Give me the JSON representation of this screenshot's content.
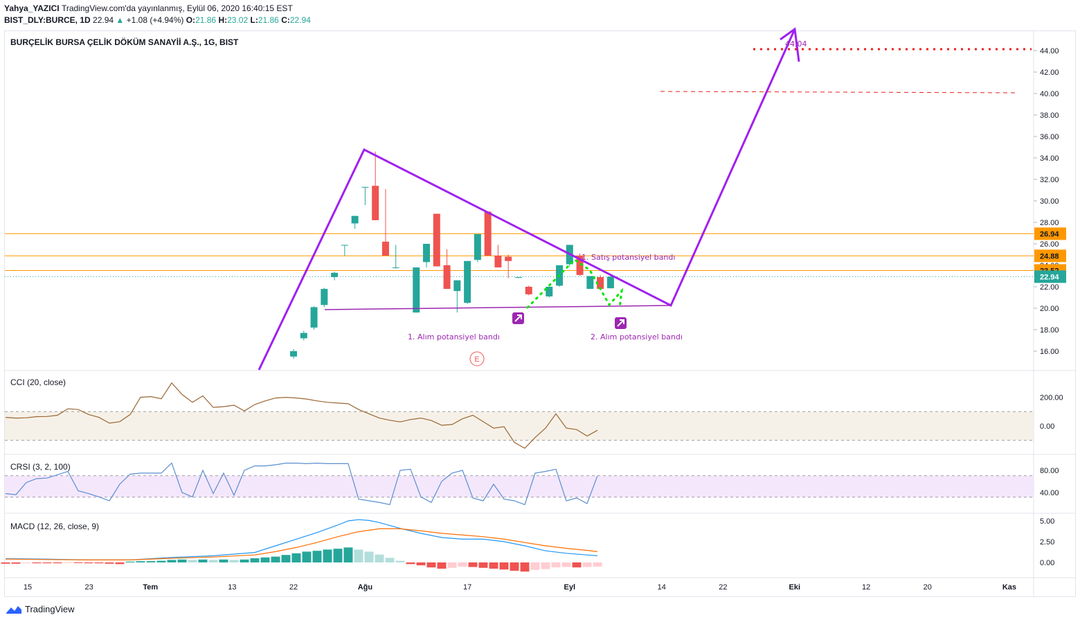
{
  "header": {
    "author": "Yahya_YAZICI",
    "published": "TradingView.com'da yayınlanmış, Eylül 06, 2020 16:40:15 EST",
    "symbol": "BIST_DLY:BURCE, 1D",
    "last": "22.94",
    "change_arrow": "▲",
    "change": "+1.08 (+4.94%)",
    "o_label": "O:",
    "o": "21.86",
    "h_label": "H:",
    "h": "23.02",
    "l_label": "L:",
    "l": "21.86",
    "c_label": "C:",
    "c": "22.94"
  },
  "chart_title": "BURÇELİK BURSA ÇELİK DÖKÜM SANAYİİ A.Ş., 1G, BIST",
  "colors": {
    "up": "#26a69a",
    "down": "#ef5350",
    "purple": "#9c27b0",
    "trend": "#a020f0",
    "orange": "#ff9800",
    "red_dots": "#e91e1e",
    "green_dots": "#00e600",
    "cci_line": "#996633",
    "crsi_line": "#5b8ecf",
    "macd_line": "#2196f3",
    "signal_line": "#ff6d00"
  },
  "chart_data": {
    "type": "candlestick",
    "price_axis": {
      "min": 16,
      "max": 44,
      "step": 2,
      "ticks": [
        "16.00",
        "18.00",
        "20.00",
        "22.00",
        "24.00",
        "26.00",
        "28.00",
        "30.00",
        "32.00",
        "34.00",
        "36.00",
        "38.00",
        "40.00",
        "42.00",
        "44.00"
      ]
    },
    "x_labels": [
      {
        "label": "15",
        "day": 0
      },
      {
        "label": "23",
        "day": 6
      },
      {
        "label": "Tem",
        "day": 12
      },
      {
        "label": "13",
        "day": 20
      },
      {
        "label": "22",
        "day": 26
      },
      {
        "label": "Ağu",
        "day": 33
      },
      {
        "label": "17",
        "day": 43
      },
      {
        "label": "Eyl",
        "day": 53
      },
      {
        "label": "14",
        "day": 62
      },
      {
        "label": "22",
        "day": 68
      },
      {
        "label": "Eki",
        "day": 75
      },
      {
        "label": "12",
        "day": 82
      },
      {
        "label": "20",
        "day": 88
      },
      {
        "label": "Kas",
        "day": 96
      }
    ],
    "candles": [
      {
        "d": 26,
        "o": 15.5,
        "h": 16.2,
        "l": 15.3,
        "c": 16.0
      },
      {
        "d": 27,
        "o": 17.2,
        "h": 17.9,
        "l": 17.0,
        "c": 17.7
      },
      {
        "d": 28,
        "o": 18.2,
        "h": 20.2,
        "l": 18.0,
        "c": 20.1
      },
      {
        "d": 29,
        "o": 20.3,
        "h": 21.9,
        "l": 20.1,
        "c": 21.8
      },
      {
        "d": 30,
        "o": 22.9,
        "h": 23.4,
        "l": 22.6,
        "c": 23.3
      },
      {
        "d": 31,
        "o": 25.9,
        "h": 25.9,
        "l": 24.9,
        "c": 25.9
      },
      {
        "d": 32,
        "o": 27.9,
        "h": 28.6,
        "l": 27.4,
        "c": 28.6
      },
      {
        "d": 33,
        "o": 31.3,
        "h": 31.3,
        "l": 29.6,
        "c": 31.3
      },
      {
        "d": 34,
        "o": 31.4,
        "h": 34.6,
        "l": 28.2,
        "c": 28.2
      },
      {
        "d": 35,
        "o": 26.2,
        "h": 31.1,
        "l": 24.9,
        "c": 24.9
      },
      {
        "d": 36,
        "o": 23.8,
        "h": 25.9,
        "l": 23.7,
        "c": 23.8
      },
      {
        "d": 38,
        "o": 19.6,
        "h": 23.8,
        "l": 19.6,
        "c": 23.8
      },
      {
        "d": 39,
        "o": 24.3,
        "h": 26.0,
        "l": 23.8,
        "c": 26.0
      },
      {
        "d": 40,
        "o": 28.8,
        "h": 28.8,
        "l": 23.9,
        "c": 23.9
      },
      {
        "d": 41,
        "o": 24.0,
        "h": 25.5,
        "l": 21.8,
        "c": 21.8
      },
      {
        "d": 42,
        "o": 21.6,
        "h": 22.6,
        "l": 19.6,
        "c": 22.6
      },
      {
        "d": 43,
        "o": 20.5,
        "h": 24.4,
        "l": 20.4,
        "c": 24.4
      },
      {
        "d": 44,
        "o": 24.5,
        "h": 26.9,
        "l": 24.3,
        "c": 26.9
      },
      {
        "d": 45,
        "o": 29.0,
        "h": 29.0,
        "l": 24.9,
        "c": 24.9
      },
      {
        "d": 46,
        "o": 24.9,
        "h": 25.9,
        "l": 23.8,
        "c": 23.8
      },
      {
        "d": 47,
        "o": 24.8,
        "h": 25.0,
        "l": 22.8,
        "c": 24.4
      },
      {
        "d": 48,
        "o": 22.9,
        "h": 22.9,
        "l": 22.8,
        "c": 22.9
      },
      {
        "d": 49,
        "o": 22.0,
        "h": 22.1,
        "l": 21.2,
        "c": 21.3
      },
      {
        "d": 51,
        "o": 21.1,
        "h": 22.0,
        "l": 21.0,
        "c": 22.0
      },
      {
        "d": 52,
        "o": 22.1,
        "h": 24.0,
        "l": 22.0,
        "c": 24.0
      },
      {
        "d": 53,
        "o": 24.1,
        "h": 25.9,
        "l": 23.9,
        "c": 25.9
      },
      {
        "d": 54,
        "o": 24.9,
        "h": 25.1,
        "l": 23.0,
        "c": 23.1
      },
      {
        "d": 55,
        "o": 21.8,
        "h": 23.0,
        "l": 21.8,
        "c": 23.0
      },
      {
        "d": 56,
        "o": 22.9,
        "h": 23.1,
        "l": 21.7,
        "c": 21.8
      },
      {
        "d": 57,
        "o": 21.86,
        "h": 23.02,
        "l": 21.86,
        "c": 22.94
      }
    ],
    "price_labels": [
      {
        "value": 26.94,
        "label": "26.94",
        "color": "#ff9800"
      },
      {
        "value": 24.88,
        "label": "24.88",
        "color": "#ff9800"
      },
      {
        "value": 23.52,
        "label": "23.52",
        "color": "#ff9800"
      },
      {
        "value": 22.94,
        "label": "22.94",
        "color": "#26a69a"
      }
    ],
    "annotations": [
      {
        "text": "44,04"
      },
      {
        "text": "1. Satış potansiyel bandı"
      },
      {
        "text": "1. Alım potansiyel bandı"
      },
      {
        "text": "2. Alım potansiyel bandı"
      },
      {
        "text": "E"
      }
    ],
    "cci": {
      "title": "CCI (20, close)",
      "ticks": [
        "200.00",
        "0.00"
      ],
      "band": [
        -100,
        100
      ],
      "values": [
        [
          0,
          60
        ],
        [
          1,
          55
        ],
        [
          2,
          57
        ],
        [
          3,
          65
        ],
        [
          4,
          66
        ],
        [
          5,
          75
        ],
        [
          6,
          120
        ],
        [
          7,
          115
        ],
        [
          8,
          80
        ],
        [
          9,
          60
        ],
        [
          10,
          20
        ],
        [
          11,
          30
        ],
        [
          12,
          80
        ],
        [
          13,
          200
        ],
        [
          14,
          205
        ],
        [
          15,
          190
        ],
        [
          16,
          300
        ],
        [
          17,
          220
        ],
        [
          18,
          165
        ],
        [
          19,
          210
        ],
        [
          20,
          130
        ],
        [
          21,
          135
        ],
        [
          22,
          145
        ],
        [
          23,
          105
        ],
        [
          24,
          150
        ],
        [
          25,
          175
        ],
        [
          26,
          195
        ],
        [
          27,
          200
        ],
        [
          28,
          195
        ],
        [
          29,
          188
        ],
        [
          30,
          175
        ],
        [
          31,
          165
        ],
        [
          32,
          160
        ],
        [
          33,
          155
        ],
        [
          34,
          115
        ],
        [
          35,
          85
        ],
        [
          36,
          55
        ],
        [
          37,
          40
        ],
        [
          38,
          28
        ],
        [
          39,
          45
        ],
        [
          40,
          55
        ],
        [
          41,
          38
        ],
        [
          42,
          5
        ],
        [
          43,
          10
        ],
        [
          44,
          50
        ],
        [
          45,
          75
        ],
        [
          46,
          30
        ],
        [
          47,
          -15
        ],
        [
          48,
          -5
        ],
        [
          49,
          -115
        ],
        [
          50,
          -155
        ],
        [
          51,
          -80
        ],
        [
          52,
          -15
        ],
        [
          53,
          85
        ],
        [
          54,
          -15
        ],
        [
          55,
          -25
        ],
        [
          56,
          -70
        ],
        [
          57,
          -30
        ]
      ]
    },
    "crsi": {
      "title": "CRSI (3, 2, 100)",
      "ticks": [
        "80.00",
        "40.00"
      ],
      "band": [
        30,
        70
      ],
      "values": [
        [
          0,
          38
        ],
        [
          1,
          36
        ],
        [
          2,
          58
        ],
        [
          3,
          65
        ],
        [
          4,
          66
        ],
        [
          5,
          72
        ],
        [
          6,
          78
        ],
        [
          7,
          43
        ],
        [
          8,
          38
        ],
        [
          9,
          32
        ],
        [
          10,
          25
        ],
        [
          11,
          55
        ],
        [
          12,
          73
        ],
        [
          13,
          75
        ],
        [
          14,
          75
        ],
        [
          15,
          75
        ],
        [
          16,
          93
        ],
        [
          17,
          40
        ],
        [
          18,
          32
        ],
        [
          19,
          80
        ],
        [
          20,
          38
        ],
        [
          21,
          75
        ],
        [
          22,
          35
        ],
        [
          23,
          80
        ],
        [
          24,
          88
        ],
        [
          25,
          88
        ],
        [
          26,
          90
        ],
        [
          27,
          93
        ],
        [
          28,
          93
        ],
        [
          29,
          92
        ],
        [
          30,
          93
        ],
        [
          31,
          92
        ],
        [
          32,
          92
        ],
        [
          33,
          92
        ],
        [
          34,
          28
        ],
        [
          35,
          25
        ],
        [
          36,
          22
        ],
        [
          37,
          18
        ],
        [
          38,
          80
        ],
        [
          39,
          82
        ],
        [
          40,
          32
        ],
        [
          41,
          22
        ],
        [
          42,
          60
        ],
        [
          43,
          75
        ],
        [
          44,
          80
        ],
        [
          45,
          30
        ],
        [
          46,
          25
        ],
        [
          47,
          55
        ],
        [
          48,
          28
        ],
        [
          49,
          25
        ],
        [
          50,
          18
        ],
        [
          51,
          75
        ],
        [
          52,
          78
        ],
        [
          53,
          82
        ],
        [
          54,
          25
        ],
        [
          55,
          30
        ],
        [
          56,
          20
        ],
        [
          57,
          70
        ]
      ]
    },
    "macd": {
      "title": "MACD (12, 26, close, 9)",
      "ticks": [
        "5.00",
        "2.50",
        "0.00"
      ],
      "macd": [
        [
          0,
          0.45
        ],
        [
          4,
          0.4
        ],
        [
          8,
          0.3
        ],
        [
          12,
          0.3
        ],
        [
          16,
          0.6
        ],
        [
          20,
          0.8
        ],
        [
          24,
          1.2
        ],
        [
          26,
          2.0
        ],
        [
          28,
          2.8
        ],
        [
          30,
          3.6
        ],
        [
          32,
          4.5
        ],
        [
          33,
          5.0
        ],
        [
          34,
          5.15
        ],
        [
          35,
          5.05
        ],
        [
          36,
          4.8
        ],
        [
          38,
          4.1
        ],
        [
          40,
          3.5
        ],
        [
          42,
          3.0
        ],
        [
          44,
          2.8
        ],
        [
          46,
          2.8
        ],
        [
          48,
          2.5
        ],
        [
          50,
          2.0
        ],
        [
          52,
          1.4
        ],
        [
          54,
          1.1
        ],
        [
          56,
          0.9
        ],
        [
          57,
          0.8
        ]
      ],
      "signal": [
        [
          0,
          0.4
        ],
        [
          4,
          0.35
        ],
        [
          8,
          0.3
        ],
        [
          12,
          0.3
        ],
        [
          16,
          0.5
        ],
        [
          20,
          0.65
        ],
        [
          24,
          0.9
        ],
        [
          26,
          1.3
        ],
        [
          28,
          1.8
        ],
        [
          30,
          2.4
        ],
        [
          32,
          3.1
        ],
        [
          34,
          3.7
        ],
        [
          36,
          4.05
        ],
        [
          38,
          4.05
        ],
        [
          40,
          3.8
        ],
        [
          42,
          3.5
        ],
        [
          44,
          3.3
        ],
        [
          46,
          3.1
        ],
        [
          48,
          2.8
        ],
        [
          50,
          2.4
        ],
        [
          52,
          2.0
        ],
        [
          54,
          1.7
        ],
        [
          56,
          1.45
        ],
        [
          57,
          1.3
        ]
      ],
      "histogram": [
        [
          0,
          -0.15
        ],
        [
          1,
          -0.15
        ],
        [
          2,
          -0.1
        ],
        [
          3,
          -0.1
        ],
        [
          4,
          -0.1
        ],
        [
          5,
          -0.1
        ],
        [
          6,
          -0.05
        ],
        [
          7,
          -0.05
        ],
        [
          8,
          -0.1
        ],
        [
          9,
          -0.1
        ],
        [
          10,
          -0.15
        ],
        [
          11,
          -0.2
        ],
        [
          12,
          0.1
        ],
        [
          13,
          0.15
        ],
        [
          14,
          0.15
        ],
        [
          15,
          0.2
        ],
        [
          16,
          0.3
        ],
        [
          17,
          0.35
        ],
        [
          18,
          0.3
        ],
        [
          19,
          0.35
        ],
        [
          20,
          0.3
        ],
        [
          21,
          0.35
        ],
        [
          22,
          0.3
        ],
        [
          23,
          0.35
        ],
        [
          24,
          0.5
        ],
        [
          25,
          0.6
        ],
        [
          26,
          0.7
        ],
        [
          27,
          0.9
        ],
        [
          28,
          1.1
        ],
        [
          29,
          1.3
        ],
        [
          30,
          1.4
        ],
        [
          31,
          1.55
        ],
        [
          32,
          1.65
        ],
        [
          33,
          1.8
        ],
        [
          34,
          1.55
        ],
        [
          35,
          1.3
        ],
        [
          36,
          0.95
        ],
        [
          37,
          0.55
        ],
        [
          38,
          0.2
        ],
        [
          39,
          -0.2
        ],
        [
          40,
          -0.35
        ],
        [
          41,
          -0.6
        ],
        [
          42,
          -0.75
        ],
        [
          43,
          -0.65
        ],
        [
          44,
          -0.5
        ],
        [
          45,
          -0.55
        ],
        [
          46,
          -0.65
        ],
        [
          47,
          -0.75
        ],
        [
          48,
          -0.85
        ],
        [
          49,
          -1.0
        ],
        [
          50,
          -1.1
        ],
        [
          51,
          -0.9
        ],
        [
          52,
          -0.8
        ],
        [
          53,
          -0.6
        ],
        [
          54,
          -0.55
        ],
        [
          55,
          -0.6
        ],
        [
          56,
          -0.55
        ],
        [
          57,
          -0.5
        ]
      ]
    }
  },
  "footer": {
    "brand": "TradingView"
  }
}
